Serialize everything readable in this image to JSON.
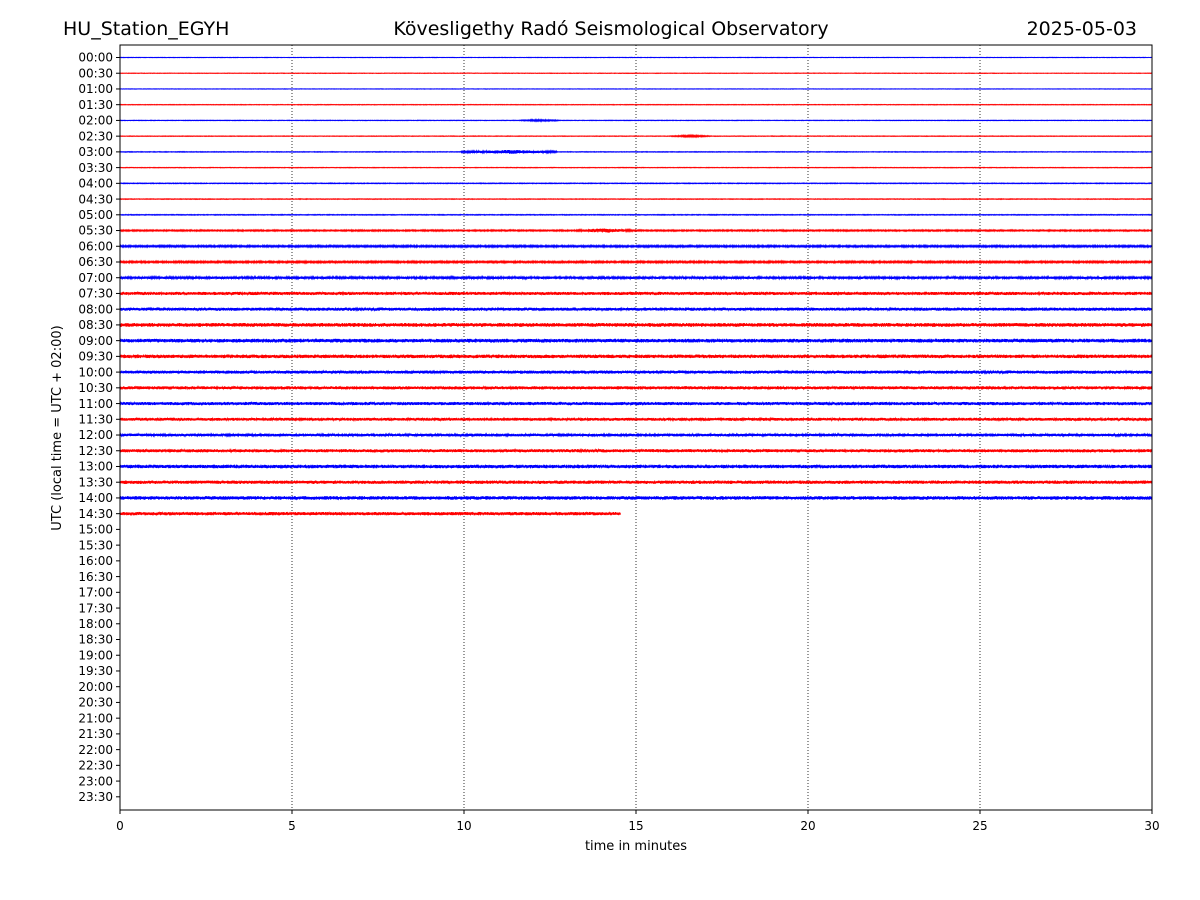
{
  "header": {
    "station": "HU_Station_EGYH",
    "observatory": "Kövesligethy Radó Seismological Observatory",
    "date": "2025-05-03"
  },
  "chart_data": {
    "type": "line",
    "title": "Kövesligethy Radó Seismological Observatory",
    "xlabel": "time in minutes",
    "ylabel": "UTC (local time = UTC + 02:00)",
    "xlim": [
      0,
      30
    ],
    "x_ticks": [
      0,
      5,
      10,
      15,
      20,
      25,
      30
    ],
    "grid": "vertical dotted at x ticks",
    "row_labels": [
      "00:00",
      "00:30",
      "01:00",
      "01:30",
      "02:00",
      "02:30",
      "03:00",
      "03:30",
      "04:00",
      "04:30",
      "05:00",
      "05:30",
      "06:00",
      "06:30",
      "07:00",
      "07:30",
      "08:00",
      "08:30",
      "09:00",
      "09:30",
      "10:00",
      "10:30",
      "11:00",
      "11:30",
      "12:00",
      "12:30",
      "13:00",
      "13:30",
      "14:00",
      "14:30",
      "15:00",
      "15:30",
      "16:00",
      "16:30",
      "17:00",
      "17:30",
      "18:00",
      "18:30",
      "19:00",
      "19:30",
      "20:00",
      "20:30",
      "21:00",
      "21:30",
      "22:00",
      "22:30",
      "23:00",
      "23:30"
    ],
    "colors": {
      "even_rows": "#0000ff",
      "odd_rows": "#ff0000",
      "grid": "#000000"
    },
    "series": [
      {
        "row": "00:00",
        "start": 0,
        "end": 30,
        "amplitude": 0.25
      },
      {
        "row": "00:30",
        "start": 0,
        "end": 30,
        "amplitude": 0.25
      },
      {
        "row": "01:00",
        "start": 0,
        "end": 30,
        "amplitude": 0.25
      },
      {
        "row": "01:30",
        "start": 0,
        "end": 30,
        "amplitude": 0.3
      },
      {
        "row": "02:00",
        "start": 0,
        "end": 30,
        "amplitude": 0.3,
        "burst": {
          "at": 12.2,
          "width": 0.6,
          "amplitude": 1.0
        }
      },
      {
        "row": "02:30",
        "start": 0,
        "end": 30,
        "amplitude": 0.3,
        "burst": {
          "at": 16.6,
          "width": 0.6,
          "amplitude": 1.0
        }
      },
      {
        "row": "03:00",
        "start": 0,
        "end": 30,
        "amplitude": 0.35,
        "burst": {
          "at": 11.3,
          "width": 1.4,
          "amplitude": 2.0
        }
      },
      {
        "row": "03:30",
        "start": 0,
        "end": 30,
        "amplitude": 0.3
      },
      {
        "row": "04:00",
        "start": 0,
        "end": 30,
        "amplitude": 0.4
      },
      {
        "row": "04:30",
        "start": 0,
        "end": 30,
        "amplitude": 0.35
      },
      {
        "row": "05:00",
        "start": 0,
        "end": 30,
        "amplitude": 0.4
      },
      {
        "row": "05:30",
        "start": 0,
        "end": 30,
        "amplitude": 0.7,
        "burst": {
          "at": 14.1,
          "width": 0.8,
          "amplitude": 2.2
        }
      },
      {
        "row": "06:00",
        "start": 0,
        "end": 30,
        "amplitude": 0.9
      },
      {
        "row": "06:30",
        "start": 0,
        "end": 30,
        "amplitude": 0.9
      },
      {
        "row": "07:00",
        "start": 0,
        "end": 30,
        "amplitude": 1.2
      },
      {
        "row": "07:30",
        "start": 0,
        "end": 30,
        "amplitude": 1.6
      },
      {
        "row": "08:00",
        "start": 0,
        "end": 30,
        "amplitude": 1.6
      },
      {
        "row": "08:30",
        "start": 0,
        "end": 30,
        "amplitude": 1.9
      },
      {
        "row": "09:00",
        "start": 0,
        "end": 30,
        "amplitude": 1.9
      },
      {
        "row": "09:30",
        "start": 0,
        "end": 30,
        "amplitude": 1.8
      },
      {
        "row": "10:00",
        "start": 0,
        "end": 30,
        "amplitude": 1.6
      },
      {
        "row": "10:30",
        "start": 0,
        "end": 30,
        "amplitude": 1.6
      },
      {
        "row": "11:00",
        "start": 0,
        "end": 30,
        "amplitude": 1.6
      },
      {
        "row": "11:30",
        "start": 0,
        "end": 30,
        "amplitude": 1.5
      },
      {
        "row": "12:00",
        "start": 0,
        "end": 30,
        "amplitude": 1.4
      },
      {
        "row": "12:30",
        "start": 0,
        "end": 30,
        "amplitude": 1.6
      },
      {
        "row": "13:00",
        "start": 0,
        "end": 30,
        "amplitude": 1.8
      },
      {
        "row": "13:30",
        "start": 0,
        "end": 30,
        "amplitude": 1.7
      },
      {
        "row": "14:00",
        "start": 0,
        "end": 30,
        "amplitude": 1.8
      },
      {
        "row": "14:30",
        "start": 0,
        "end": 14.55,
        "amplitude": 1.7
      }
    ]
  }
}
